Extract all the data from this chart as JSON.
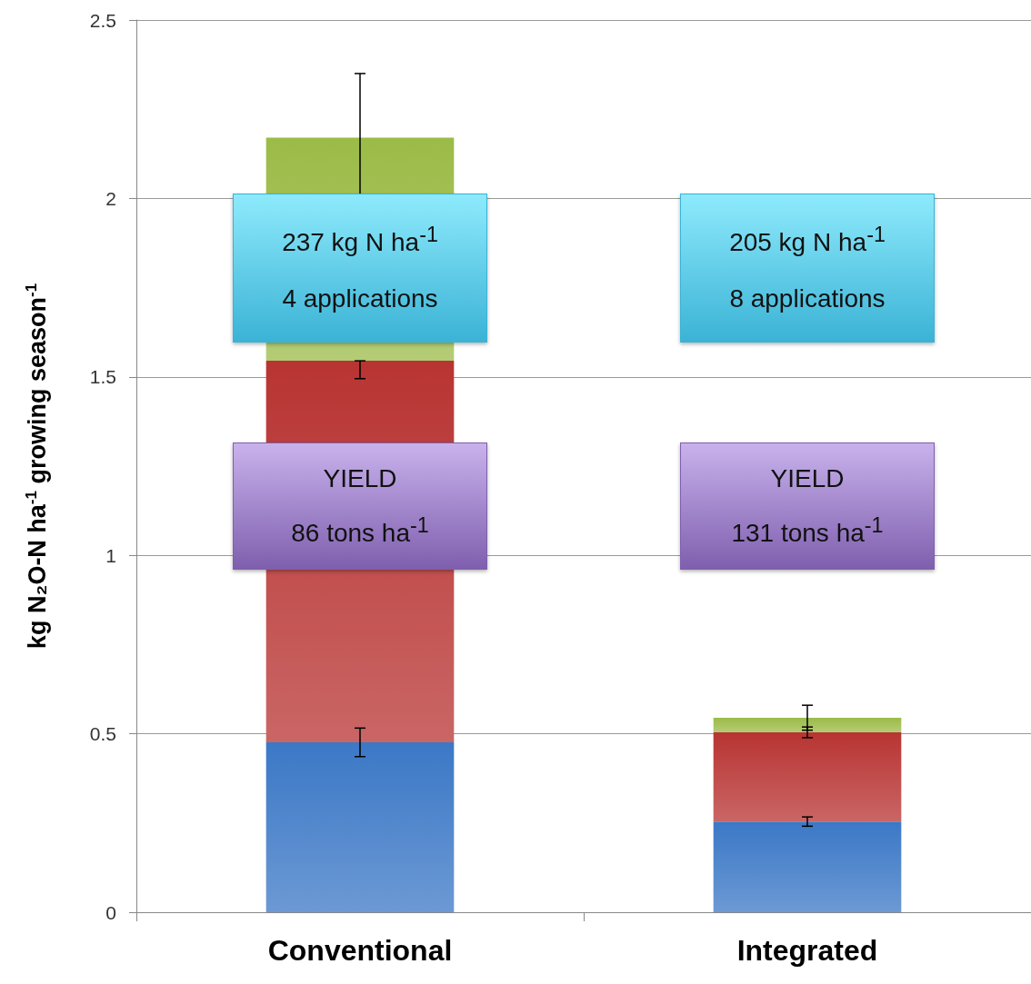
{
  "chart_data": {
    "type": "bar",
    "stacked": true,
    "ylabel": "kg N₂O-N ha$^{-1}$ growing season$^{-1}$",
    "categories": [
      "Conventional",
      "Integrated"
    ],
    "series": [
      {
        "color": "#3b78c6",
        "values": [
          0.476,
          0.254
        ],
        "errors": [
          0.04,
          0.013
        ]
      },
      {
        "color": "#b83432",
        "values": [
          1.069,
          0.25
        ],
        "errors": [
          [
            1.495,
            1.545
          ],
          0.015
        ]
      },
      {
        "color": "#9bbb47",
        "values": [
          0.625,
          0.041
        ],
        "errors": [
          0.18,
          0.035
        ]
      }
    ],
    "ylim": [
      0,
      2.5
    ],
    "yticks": [
      0,
      0.5,
      1,
      1.5,
      2,
      2.5
    ],
    "grid": "y",
    "annotations": [
      "237 kg N ha$^{-1}$\n4 applications",
      "205 kg N ha$^{-1}$\n8 applications",
      "YIELD\n86 tons ha$^{-1}$",
      "YIELD\n131 tons ha$^{-1}$"
    ]
  }
}
